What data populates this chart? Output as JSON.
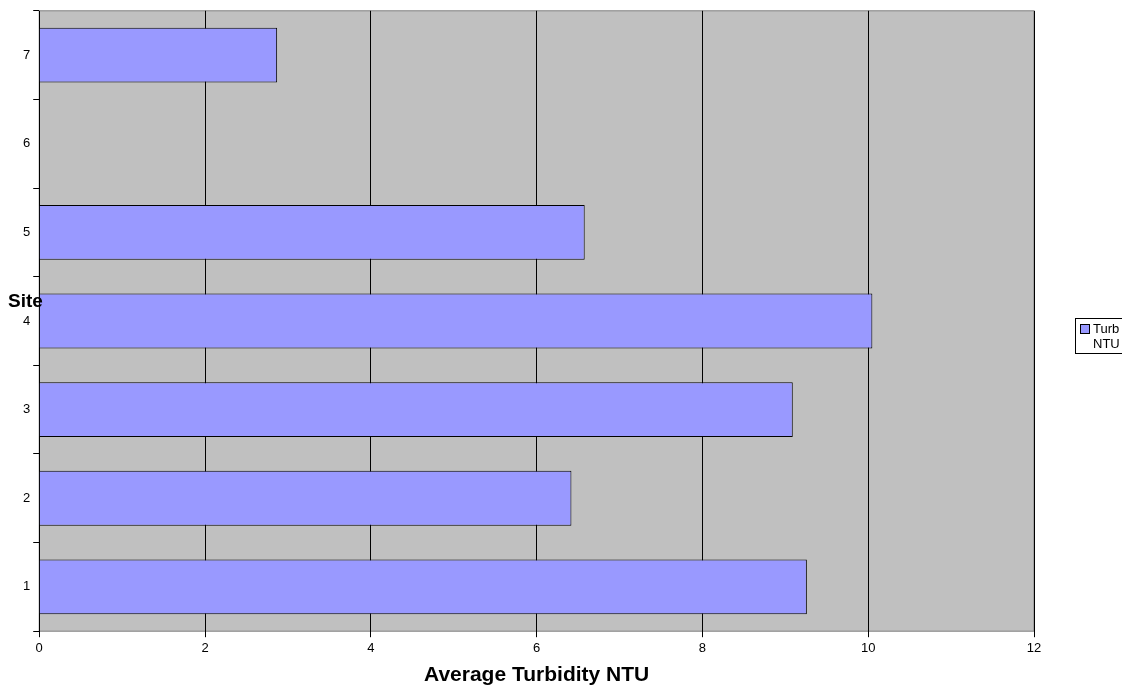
{
  "chart_data": {
    "type": "bar",
    "orientation": "horizontal",
    "xlabel": "Average Turbidity NTU",
    "ylabel": "Site",
    "categories": [
      "7",
      "6",
      "5",
      "4",
      "3",
      "2",
      "1"
    ],
    "series": [
      {
        "name": "Turb NTU",
        "color": "#9999ff",
        "values": [
          2.87,
          null,
          6.58,
          10.05,
          9.09,
          6.42,
          9.26
        ]
      }
    ],
    "xlim": [
      0,
      12
    ],
    "xticks": [
      0,
      2,
      4,
      6,
      8,
      10,
      12
    ],
    "grid": "x",
    "legend": "right"
  }
}
